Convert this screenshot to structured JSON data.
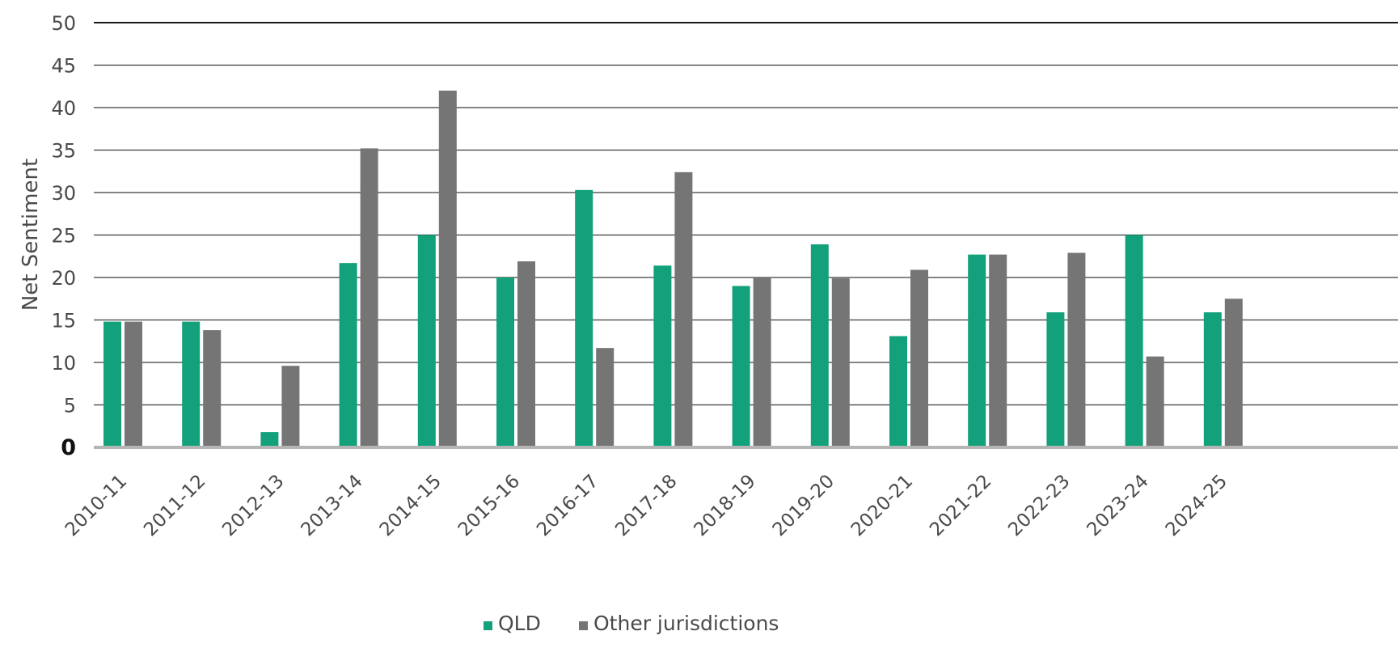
{
  "chart_data": {
    "type": "bar",
    "title": "",
    "xlabel": "",
    "ylabel": "Net Sentiment",
    "ylim": [
      0,
      50
    ],
    "y_ticks": [
      0,
      5,
      10,
      15,
      20,
      25,
      30,
      35,
      40,
      45,
      50
    ],
    "grid": true,
    "legend_position": "bottom",
    "categories": [
      "2010-11",
      "2011-12",
      "2012-13",
      "2013-14",
      "2014-15",
      "2015-16",
      "2016-17",
      "2017-18",
      "2018-19",
      "2019-20",
      "2020-21",
      "2021-22",
      "2022-23",
      "2023-24",
      "2024-25"
    ],
    "series": [
      {
        "name": "QLD",
        "color": "#12a17b",
        "values": [
          14.8,
          14.8,
          1.8,
          21.7,
          25.0,
          20.0,
          30.3,
          21.4,
          19.0,
          23.9,
          13.1,
          22.7,
          15.9,
          25.0,
          15.9
        ]
      },
      {
        "name": "Other jurisdictions",
        "color": "#757575",
        "values": [
          14.8,
          13.8,
          9.6,
          35.2,
          42.0,
          21.9,
          11.7,
          32.4,
          20.0,
          19.9,
          20.9,
          22.7,
          22.9,
          10.7,
          17.5
        ]
      }
    ]
  }
}
